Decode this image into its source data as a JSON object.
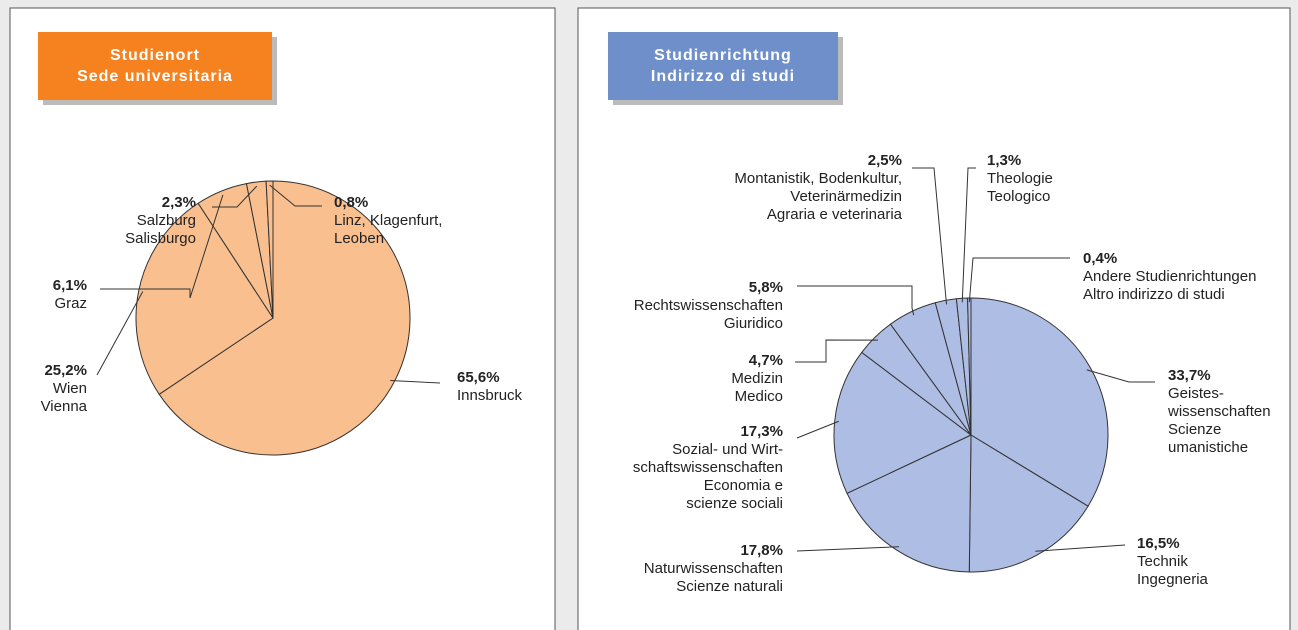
{
  "chart_data": [
    {
      "type": "pie",
      "title": [
        "Studienort",
        "Sede universitaria"
      ],
      "title_color": "#f5821f",
      "color": "#f9bf8f",
      "categories": [
        [
          "Innsbruck"
        ],
        [
          "Wien",
          "Vienna"
        ],
        [
          "Graz"
        ],
        [
          "Salzburg",
          "Salisburgo"
        ],
        [
          "Linz, Klagenfurt,",
          "Leoben"
        ]
      ],
      "values": [
        65.6,
        25.2,
        6.1,
        2.3,
        0.8
      ],
      "value_labels": [
        "65,6%",
        "25,2%",
        "6,1%",
        "2,3%",
        "0,8%"
      ]
    },
    {
      "type": "pie",
      "title": [
        "Studienrichtung",
        "Indirizzo di studi"
      ],
      "title_color": "#6f8fca",
      "color": "#adbde3",
      "categories": [
        [
          "Geistes-",
          "wissenschaften",
          "Scienze",
          "umanistiche"
        ],
        [
          "Technik",
          "Ingegneria"
        ],
        [
          "Naturwissenschaften",
          "Scienze naturali"
        ],
        [
          "Sozial- und Wirt-",
          "schaftswissenschaften",
          "Economia e",
          "scienze sociali"
        ],
        [
          "Medizin",
          "Medico"
        ],
        [
          "Rechtswissenschaften",
          "Giuridico"
        ],
        [
          "Montanistik, Bodenkultur,",
          "Veterinärmedizin",
          "Agraria e veterinaria"
        ],
        [
          "Theologie",
          "Teologico"
        ],
        [
          "Andere Studienrichtungen",
          "Altro indirizzo di studi"
        ]
      ],
      "values": [
        33.7,
        16.5,
        17.8,
        17.3,
        4.7,
        5.8,
        2.5,
        1.3,
        0.4
      ],
      "value_labels": [
        "33,7%",
        "16,5%",
        "17,8%",
        "17,3%",
        "4,7%",
        "5,8%",
        "2,5%",
        "1,3%",
        "0,4%"
      ]
    }
  ]
}
